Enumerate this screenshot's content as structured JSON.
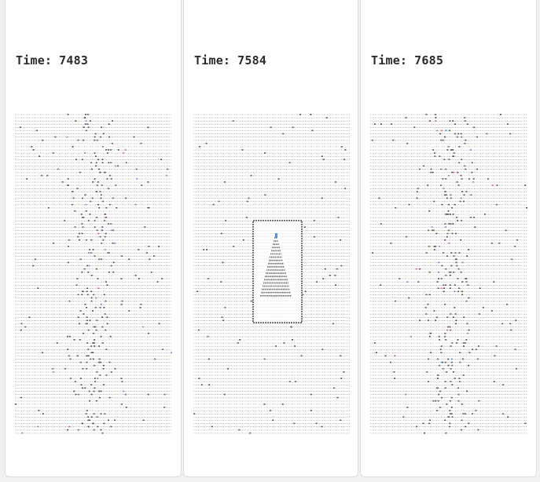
{
  "panels": [
    {
      "time_label": "Time:",
      "time_value": "7483",
      "pattern": "scattered-center",
      "seed": 17,
      "has_tree": false
    },
    {
      "time_label": "Time:",
      "time_value": "7584",
      "pattern": "sparse-with-tree",
      "seed": 29,
      "has_tree": true
    },
    {
      "time_label": "Time:",
      "time_value": "7685",
      "pattern": "scattered-center",
      "seed": 43,
      "has_tree": false
    }
  ],
  "colors": {
    "background": "#f1f1f1",
    "panel": "#ffffff",
    "panel_border": "#dddddd",
    "text": "#2b2b2b",
    "grid_line": "#9a9a9a",
    "point": "#555555",
    "point_accent_blue": "#5b8fd6",
    "point_accent_red": "#c9605a",
    "tree": "#6a6a6a",
    "frame": "#777777"
  }
}
